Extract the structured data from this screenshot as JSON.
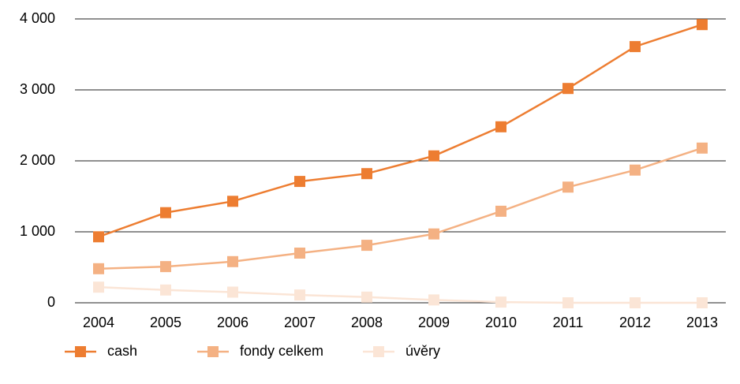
{
  "chart_data": {
    "type": "line",
    "categories": [
      "2004",
      "2005",
      "2006",
      "2007",
      "2008",
      "2009",
      "2010",
      "2011",
      "2012",
      "2013"
    ],
    "series": [
      {
        "name": "cash",
        "color": "#ed7d31",
        "values": [
          930,
          1270,
          1430,
          1710,
          1820,
          2070,
          2480,
          3020,
          3610,
          3920
        ]
      },
      {
        "name": "fondy celkem",
        "color": "#f4b183",
        "values": [
          480,
          510,
          580,
          700,
          810,
          970,
          1290,
          1630,
          1870,
          2180
        ]
      },
      {
        "name": "úvěry",
        "color": "#fbe5d6",
        "values": [
          220,
          180,
          150,
          110,
          80,
          40,
          10,
          0,
          0,
          0
        ]
      }
    ],
    "ylim": [
      0,
      4000
    ],
    "yticks": [
      0,
      {
        "value": 1000,
        "label": "1 000"
      },
      {
        "value": 2000,
        "label": "2 000"
      },
      {
        "value": 3000,
        "label": "3 000"
      },
      {
        "value": 4000,
        "label": "4 000"
      }
    ],
    "grid": true,
    "legend": "bottom"
  }
}
